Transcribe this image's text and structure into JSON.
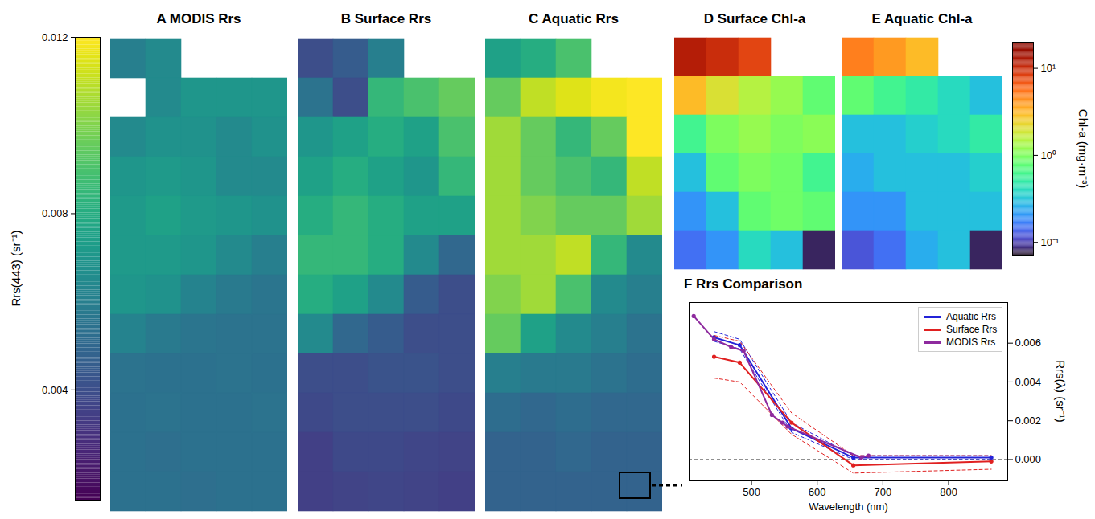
{
  "chart_data": [
    {
      "type": "heatmap_group",
      "colorbar": {
        "label": "Rrs(443) (sr⁻¹)",
        "range": [
          0.0015,
          0.012
        ],
        "ticks": [
          0.004,
          0.008,
          0.012
        ],
        "color": "viridis"
      },
      "panels": [
        {
          "label": "A",
          "title": "MODIS Rrs",
          "cells": [
            [
              0.006,
              0.0065,
              null,
              null,
              null
            ],
            [
              null,
              0.0065,
              0.007,
              0.007,
              0.007
            ],
            [
              0.0065,
              0.0068,
              0.0068,
              0.0065,
              0.0068
            ],
            [
              0.007,
              0.0072,
              0.007,
              0.0065,
              0.0065
            ],
            [
              0.0072,
              0.0075,
              0.0072,
              0.007,
              0.0068
            ],
            [
              0.0072,
              0.0072,
              0.007,
              0.0065,
              0.006
            ],
            [
              0.007,
              0.0068,
              0.0062,
              0.0058,
              0.0056
            ],
            [
              0.0062,
              0.0058,
              0.0056,
              0.0055,
              0.0055
            ],
            [
              0.0055,
              0.0054,
              0.0054,
              0.0055,
              0.0054
            ],
            [
              0.0054,
              0.0055,
              0.0054,
              0.0054,
              0.0055
            ],
            [
              0.0054,
              0.0053,
              0.0054,
              0.0054,
              0.0054
            ],
            [
              0.0054,
              0.0054,
              0.0053,
              0.0054,
              0.0054
            ]
          ]
        },
        {
          "label": "B",
          "title": "Surface Rrs",
          "cells": [
            [
              0.004,
              0.0045,
              0.006,
              null,
              null
            ],
            [
              0.0055,
              0.004,
              0.0085,
              0.009,
              0.0095
            ],
            [
              0.007,
              0.0075,
              0.008,
              0.0075,
              0.009
            ],
            [
              0.0075,
              0.008,
              0.0075,
              0.007,
              0.0085
            ],
            [
              0.008,
              0.0085,
              0.008,
              0.0075,
              0.0075
            ],
            [
              0.0085,
              0.0085,
              0.008,
              0.0065,
              0.005
            ],
            [
              0.008,
              0.0075,
              0.0065,
              0.0045,
              0.004
            ],
            [
              0.0065,
              0.005,
              0.0045,
              0.004,
              0.004
            ],
            [
              0.004,
              0.004,
              0.0042,
              0.0042,
              0.004
            ],
            [
              0.0038,
              0.004,
              0.004,
              0.004,
              0.0038
            ],
            [
              0.0035,
              0.0038,
              0.0038,
              0.0037,
              0.0036
            ],
            [
              0.0035,
              0.0036,
              0.0037,
              0.0036,
              0.0035
            ]
          ]
        },
        {
          "label": "C",
          "title": "Aquatic Rrs",
          "cells": [
            [
              0.0075,
              0.008,
              0.009,
              null,
              null
            ],
            [
              0.0095,
              0.011,
              0.0115,
              0.0118,
              0.012
            ],
            [
              0.0105,
              0.0095,
              0.0085,
              0.0095,
              0.012
            ],
            [
              0.0105,
              0.0095,
              0.009,
              0.0085,
              0.011
            ],
            [
              0.0105,
              0.01,
              0.0095,
              0.0095,
              0.0105
            ],
            [
              0.0105,
              0.0105,
              0.011,
              0.0085,
              0.0065
            ],
            [
              0.01,
              0.0105,
              0.009,
              0.0065,
              0.006
            ],
            [
              0.0095,
              0.0075,
              0.0065,
              0.006,
              0.0055
            ],
            [
              0.006,
              0.0058,
              0.0058,
              0.0055,
              0.0052
            ],
            [
              0.0052,
              0.005,
              0.0052,
              0.005,
              0.005
            ],
            [
              0.0048,
              0.0048,
              0.005,
              0.0048,
              0.0048
            ],
            [
              0.0048,
              0.0048,
              0.0048,
              0.0048,
              0.0048
            ]
          ]
        }
      ]
    },
    {
      "type": "heatmap_group",
      "colorbar": {
        "label": "Chl-a (mg·m⁻³)",
        "range": [
          0.07,
          20
        ],
        "log": true,
        "ticks": [
          {
            "value": 0.1,
            "label": "10⁻¹"
          },
          {
            "value": 1,
            "label": "10⁰"
          },
          {
            "value": 10,
            "label": "10¹"
          }
        ],
        "color": "turbo"
      },
      "panels": [
        {
          "label": "D",
          "title": "Surface Chl-a",
          "cells": [
            [
              12,
              10,
              8,
              null,
              null
            ],
            [
              3,
              2,
              1.5,
              1.2,
              0.8
            ],
            [
              0.6,
              1.0,
              1.2,
              1.0,
              1.1
            ],
            [
              0.3,
              0.8,
              1.0,
              0.9,
              0.6
            ],
            [
              0.2,
              0.3,
              0.8,
              0.9,
              0.8
            ],
            [
              0.15,
              0.2,
              0.4,
              0.3,
              0.08
            ]
          ]
        },
        {
          "label": "E",
          "title": "Aquatic Chl-a",
          "cells": [
            [
              5,
              4,
              3,
              null,
              null
            ],
            [
              0.8,
              0.6,
              0.5,
              0.4,
              0.3
            ],
            [
              0.3,
              0.3,
              0.35,
              0.4,
              0.5
            ],
            [
              0.25,
              0.3,
              0.3,
              0.3,
              0.35
            ],
            [
              0.2,
              0.2,
              0.3,
              0.3,
              0.3
            ],
            [
              0.12,
              0.15,
              0.25,
              0.3,
              0.08
            ]
          ]
        }
      ]
    },
    {
      "type": "line",
      "label": "F",
      "title": "Rrs Comparison",
      "xlabel": "Wavelength (nm)",
      "ylabel": "Rrs(λ) (sr⁻¹)",
      "xlim": [
        405,
        890
      ],
      "xticks": [
        500,
        600,
        700,
        800
      ],
      "ylim": [
        -0.0011,
        0.0081
      ],
      "yticks": [
        {
          "value": 0,
          "label": "0.000"
        },
        0.002,
        0.004,
        0.006
      ],
      "reference_line": 0,
      "legend": "top-right",
      "marker": "circle",
      "series": [
        {
          "name": "Aquatic Rrs",
          "color": "#2323d8",
          "x": [
            443,
            482,
            561,
            655,
            865
          ],
          "values": [
            0.0063,
            0.0059,
            0.0016,
            0.0001,
            0.0001
          ],
          "lower": [
            0.0061,
            0.0057,
            0.0014,
            0.0,
            0.0
          ],
          "upper": [
            0.0066,
            0.0062,
            0.0019,
            0.0002,
            0.0002
          ]
        },
        {
          "name": "Surface Rrs",
          "color": "#e02020",
          "x": [
            443,
            482,
            561,
            655,
            865
          ],
          "values": [
            0.0053,
            0.005,
            0.0019,
            -0.0003,
            -0.0001
          ],
          "lower": [
            0.0042,
            0.004,
            0.0013,
            -0.0007,
            -0.0005
          ],
          "upper": [
            0.0064,
            0.0061,
            0.0024,
            0.0002,
            0.0002
          ]
        },
        {
          "name": "MODIS Rrs",
          "color": "#8e2a9e",
          "x": [
            412,
            443,
            469,
            488,
            531,
            547,
            555,
            667,
            678
          ],
          "values": [
            0.0074,
            0.0062,
            0.0058,
            0.0056,
            0.0023,
            0.0019,
            0.0017,
            0.0001,
            0.0002
          ]
        }
      ]
    }
  ]
}
